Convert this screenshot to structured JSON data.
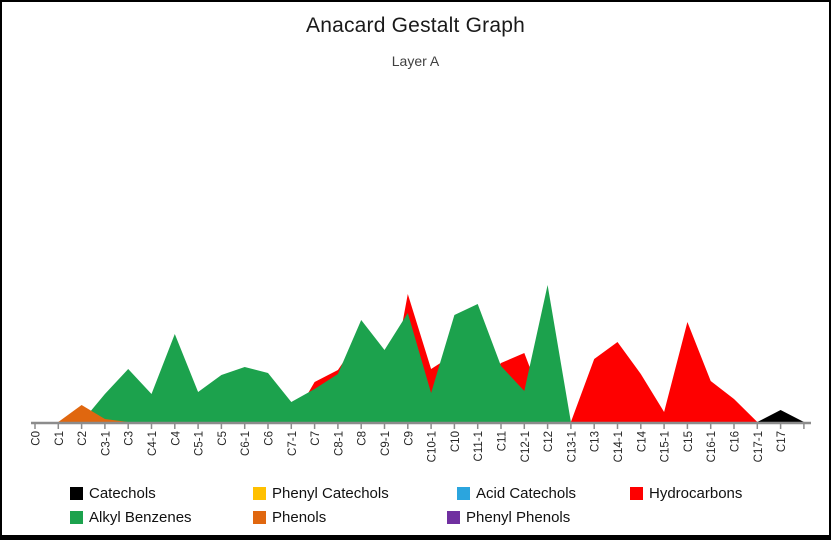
{
  "chart": {
    "title": "Anacard Gestalt Graph",
    "subtitle": "Layer A"
  },
  "axis": {
    "line_color": "#8C8C8C",
    "tick_label_color": "#262626"
  },
  "chart_data": {
    "type": "area",
    "stacked": true,
    "title": "Anacard Gestalt Graph",
    "subtitle": "Layer A",
    "xlabel": "",
    "ylabel": "",
    "y_axis_visible": false,
    "ylim": [
      0,
      260
    ],
    "units": "relative (no y-axis shown; values estimated in pixel-proportional units)",
    "legend_position": "bottom",
    "grid": false,
    "categories": [
      "C0",
      "C1",
      "C2",
      "C3-1",
      "C3",
      "C4-1",
      "C4",
      "C5-1",
      "C5",
      "C6-1",
      "C6",
      "C7-1",
      "C7",
      "C8-1",
      "C8",
      "C9-1",
      "C9",
      "C10-1",
      "C10",
      "C11-1",
      "C11",
      "C12-1",
      "C12",
      "C13-1",
      "C13",
      "C14-1",
      "C14",
      "C15-1",
      "C15",
      "C16-1",
      "C16",
      "C17-1",
      "C17"
    ],
    "series": [
      {
        "name": "Catechols",
        "color": "#000000",
        "values": [
          0,
          0,
          0,
          0,
          0,
          0,
          0,
          0,
          0,
          0,
          0,
          0,
          0,
          0,
          0,
          0,
          0,
          0,
          0,
          0,
          0,
          0,
          0,
          0,
          0,
          0,
          0,
          0,
          23,
          0,
          0,
          0,
          12
        ]
      },
      {
        "name": "Phenyl Catechols",
        "color": "#FFC000",
        "values": [
          0,
          0,
          0,
          0,
          0,
          0,
          0,
          0,
          0,
          0,
          0,
          0,
          0,
          0,
          0,
          0,
          0,
          0,
          4,
          0,
          0,
          0,
          15,
          0,
          0,
          0,
          0,
          0,
          0,
          0,
          0,
          0,
          0
        ]
      },
      {
        "name": "Acid Catechols",
        "color": "#2BA5DE",
        "values": [
          0,
          0,
          0,
          0,
          0,
          0,
          0,
          0,
          0,
          0,
          0,
          0,
          24,
          10,
          34,
          0,
          17,
          0,
          0,
          0,
          0,
          0,
          0,
          0,
          0,
          0,
          0,
          0,
          0,
          0,
          0,
          0,
          0
        ]
      },
      {
        "name": "Hydrocarbons",
        "color": "#FE0000",
        "values": [
          0,
          0,
          0,
          0,
          0,
          0,
          0,
          0,
          0,
          0,
          0,
          0,
          40,
          52,
          86,
          2,
          128,
          53,
          68,
          32,
          59,
          69,
          8,
          0,
          63,
          80,
          48,
          10,
          100,
          41,
          23,
          0,
          0
        ]
      },
      {
        "name": "Alkyl Benzenes",
        "color": "#1CA24D",
        "values": [
          0,
          0,
          0,
          28,
          53,
          28,
          88,
          30,
          47,
          55,
          49,
          20,
          33,
          48,
          102,
          72,
          109,
          29,
          107,
          118,
          56,
          31,
          137,
          0,
          0,
          0,
          0,
          0,
          0,
          0,
          0,
          0,
          0
        ]
      },
      {
        "name": "Phenols",
        "color": "#E0670F",
        "values": [
          0,
          0,
          17,
          3,
          0,
          0,
          0,
          0,
          0,
          0,
          0,
          0,
          0,
          0,
          0,
          0,
          0,
          0,
          0,
          0,
          0,
          0,
          0,
          0,
          0,
          0,
          0,
          0,
          0,
          0,
          0,
          0,
          0
        ]
      },
      {
        "name": "Phenyl Phenols",
        "color": "#7030A0",
        "values": [
          0,
          0,
          0,
          0,
          0,
          0,
          0,
          0,
          0,
          0,
          0,
          0,
          0,
          0,
          0,
          0,
          0,
          0,
          0,
          0,
          0,
          0,
          0,
          0,
          0,
          0,
          0,
          0,
          0,
          0,
          0,
          0,
          0
        ]
      }
    ]
  }
}
